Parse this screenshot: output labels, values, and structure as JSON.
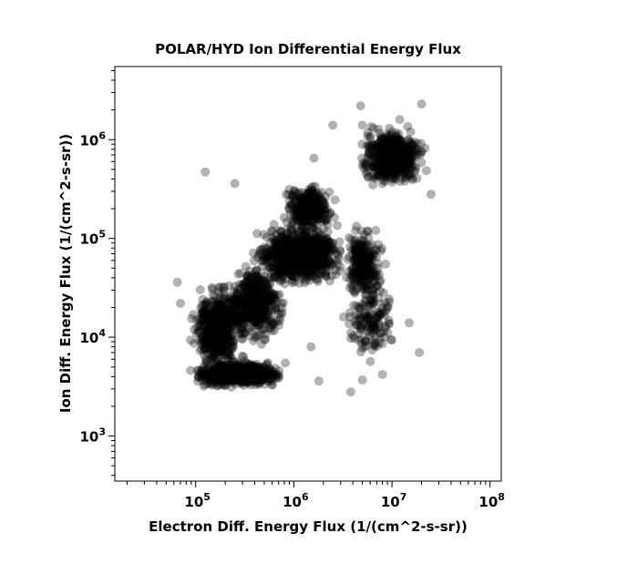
{
  "chart_data": {
    "type": "scatter",
    "title": "POLAR/HYD  Ion Differential Energy Flux",
    "xlabel": "Electron Diff. Energy Flux (1/(cm^2-s-sr))",
    "ylabel": "Ion Diff. Energy Flux (1/(cm^2-s-sr))",
    "x_scale": "log",
    "y_scale": "log",
    "xlim": [
      15000,
      130000000
    ],
    "ylim": [
      350,
      5500000
    ],
    "x_ticks": [
      {
        "value": 100000,
        "base": "10",
        "exp": "5"
      },
      {
        "value": 1000000,
        "base": "10",
        "exp": "6"
      },
      {
        "value": 10000000,
        "base": "10",
        "exp": "7"
      },
      {
        "value": 100000000,
        "base": "10",
        "exp": "8"
      }
    ],
    "y_ticks": [
      {
        "value": 1000,
        "base": "10",
        "exp": "3"
      },
      {
        "value": 10000,
        "base": "10",
        "exp": "4"
      },
      {
        "value": 100000,
        "base": "10",
        "exp": "5"
      },
      {
        "value": 1000000,
        "base": "10",
        "exp": "6"
      }
    ],
    "grid": false,
    "marker_color": "#000000",
    "marker_alpha": 0.3,
    "clusters": [
      {
        "x": [
          80000,
          900000
        ],
        "y": [
          3000,
          6000
        ],
        "n": 700
      },
      {
        "x": [
          80000,
          350000
        ],
        "y": [
          4000,
          40000
        ],
        "n": 500
      },
      {
        "x": [
          180000,
          900000
        ],
        "y": [
          8000,
          60000
        ],
        "n": 500
      },
      {
        "x": [
          350000,
          4000000
        ],
        "y": [
          30000,
          150000
        ],
        "n": 900
      },
      {
        "x": [
          700000,
          3000000
        ],
        "y": [
          100000,
          400000
        ],
        "n": 300
      },
      {
        "x": [
          3000000,
          9000000
        ],
        "y": [
          20000,
          150000
        ],
        "n": 250
      },
      {
        "x": [
          4000000,
          25000000
        ],
        "y": [
          300000,
          1500000
        ],
        "n": 500
      },
      {
        "x": [
          3000000,
          12000000
        ],
        "y": [
          5000,
          50000
        ],
        "n": 150
      }
    ],
    "points": [
      [
        125000,
        470000
      ],
      [
        250000,
        360000
      ],
      [
        4800000,
        2200000
      ],
      [
        20000000,
        2300000
      ],
      [
        19000000,
        7000
      ],
      [
        3800000,
        2800
      ],
      [
        65000,
        36000
      ],
      [
        70000,
        22000
      ],
      [
        1600000,
        650000
      ],
      [
        5000000,
        1400000
      ],
      [
        12000000,
        1600000
      ],
      [
        25000000,
        280000
      ],
      [
        15000000,
        14000
      ],
      [
        7000000,
        12000
      ],
      [
        8000000,
        4200
      ],
      [
        1800000,
        3600
      ],
      [
        5000000,
        3700
      ],
      [
        450000,
        5000
      ],
      [
        1500000,
        8000
      ],
      [
        2500000,
        1400000
      ]
    ]
  }
}
